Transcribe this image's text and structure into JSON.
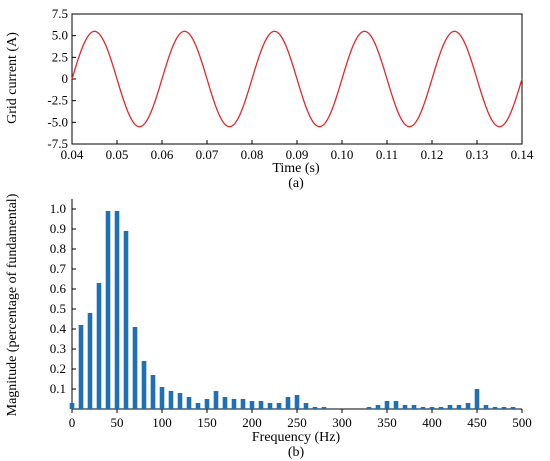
{
  "chart_data": [
    {
      "type": "line",
      "caption": "(a)",
      "xlabel": "Time (s)",
      "ylabel": "Grid current (A)",
      "xlim": [
        0.04,
        0.14
      ],
      "ylim": [
        -7.5,
        7.5
      ],
      "x_ticks": [
        "0.04",
        "0.05",
        "0.06",
        "0.07",
        "0.08",
        "0.09",
        "0.10",
        "0.11",
        "0.12",
        "0.13",
        "0.14"
      ],
      "y_ticks": [
        "7.5",
        "5.0",
        "2.5",
        "0",
        "-2.5",
        "-5.0",
        "-7.5"
      ],
      "series": [
        {
          "amplitude": 5.5,
          "frequency_hz": 50,
          "phase_zero_crossing_s": 0.04,
          "color": "#e8262a"
        }
      ]
    },
    {
      "type": "bar",
      "caption": "(b)",
      "xlabel": "Frequency (Hz)",
      "ylabel": "Magnitude (percentage of fundamental)",
      "xlim": [
        0,
        500
      ],
      "ylim": [
        0,
        1.05
      ],
      "x_ticks": [
        "0",
        "50",
        "100",
        "150",
        "200",
        "250",
        "300",
        "350",
        "400",
        "450",
        "500"
      ],
      "y_ticks": [
        "1.0",
        "0.9",
        "0.8",
        "0.7",
        "0.6",
        "0.5",
        "0.4",
        "0.3",
        "0.2",
        "0.1"
      ],
      "color": "#1f6fb4",
      "x": [
        0,
        10,
        20,
        30,
        40,
        50,
        60,
        70,
        80,
        90,
        100,
        110,
        120,
        130,
        140,
        150,
        160,
        170,
        180,
        190,
        200,
        210,
        220,
        230,
        240,
        250,
        260,
        270,
        280,
        290,
        300,
        310,
        320,
        330,
        340,
        350,
        360,
        370,
        380,
        390,
        400,
        410,
        420,
        430,
        440,
        450,
        460,
        470,
        480,
        490
      ],
      "values": [
        0.03,
        0.42,
        0.48,
        0.63,
        0.99,
        0.99,
        0.89,
        0.41,
        0.24,
        0.17,
        0.11,
        0.09,
        0.08,
        0.06,
        0.03,
        0.05,
        0.09,
        0.06,
        0.05,
        0.05,
        0.04,
        0.04,
        0.03,
        0.03,
        0.06,
        0.07,
        0.03,
        0.01,
        0.01,
        0.0,
        0.0,
        0.0,
        0.0,
        0.01,
        0.02,
        0.04,
        0.04,
        0.02,
        0.02,
        0.01,
        0.01,
        0.01,
        0.02,
        0.02,
        0.03,
        0.1,
        0.02,
        0.01,
        0.01,
        0.01
      ]
    }
  ]
}
